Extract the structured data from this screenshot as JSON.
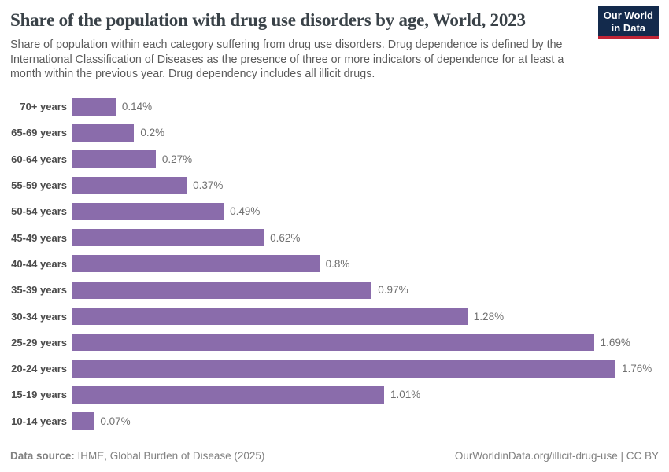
{
  "chart_data": {
    "type": "bar",
    "orientation": "horizontal",
    "title": "Share of the population with drug use disorders by age, World, 2023",
    "subtitle_lines": [
      "Share of population within each category suffering from drug use disorders. Drug dependence is defined by the",
      "International Classification of Diseases as the presence of three or more indicators of dependence for at least a",
      "month within the previous year. Drug dependency includes all illicit drugs."
    ],
    "categories": [
      "70+ years",
      "65-69 years",
      "60-64 years",
      "55-59 years",
      "50-54 years",
      "45-49 years",
      "40-44 years",
      "35-39 years",
      "30-34 years",
      "25-29 years",
      "20-24 years",
      "15-19 years",
      "10-14 years"
    ],
    "values": [
      0.14,
      0.2,
      0.27,
      0.37,
      0.49,
      0.62,
      0.8,
      0.97,
      1.28,
      1.69,
      1.76,
      1.01,
      0.07
    ],
    "value_labels": [
      "0.14%",
      "0.2%",
      "0.27%",
      "0.37%",
      "0.49%",
      "0.62%",
      "0.8%",
      "0.97%",
      "1.28%",
      "1.69%",
      "1.76%",
      "1.01%",
      "0.07%"
    ],
    "unit": "%",
    "xlim": [
      0,
      1.76
    ],
    "grid": false,
    "legend": "none",
    "bar_color": "#8a6cab",
    "axis_line_color": "#d9d9d9"
  },
  "logo": {
    "line1": "Our World",
    "line2": "in Data",
    "bg_color": "#132a4c",
    "accent_color": "#c22536"
  },
  "footer": {
    "source_label": "Data source:",
    "source_value": " IHME, Global Burden of Disease (2025)",
    "link": "OurWorldinData.org/illicit-drug-use | CC BY"
  }
}
